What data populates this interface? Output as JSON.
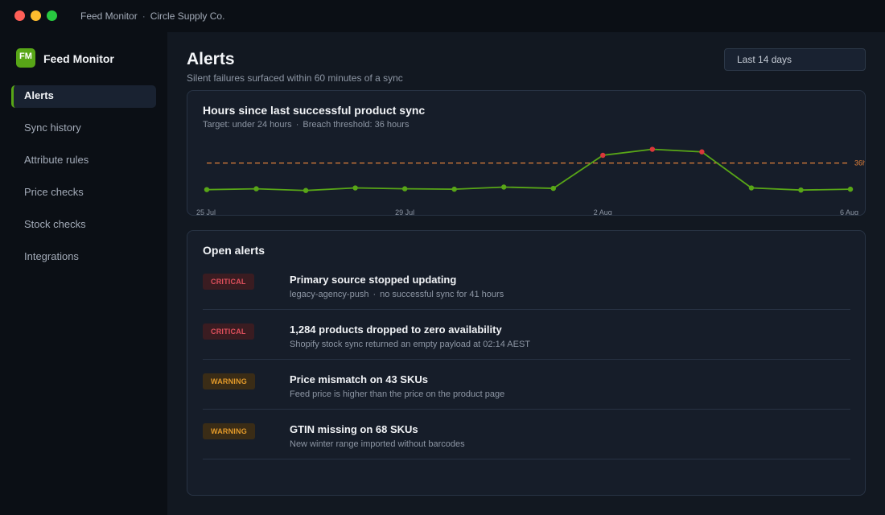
{
  "window": {
    "app_name": "Feed Monitor",
    "separator": "·",
    "company": "Circle Supply Co."
  },
  "sidebar": {
    "logo_text": "FM",
    "brand": "Feed Monitor",
    "items": [
      {
        "label": "Alerts",
        "active": true
      },
      {
        "label": "Sync history",
        "active": false
      },
      {
        "label": "Attribute rules",
        "active": false
      },
      {
        "label": "Price checks",
        "active": false
      },
      {
        "label": "Stock checks",
        "active": false
      },
      {
        "label": "Integrations",
        "active": false
      }
    ]
  },
  "header": {
    "title": "Alerts",
    "subtitle": "Silent failures surfaced within 60 minutes of a sync",
    "date_range": "Last 14 days"
  },
  "chart_card": {
    "title": "Hours since last successful product sync",
    "target": "Target: under 24 hours",
    "separator": "·",
    "threshold_text": "Breach threshold: 36 hours"
  },
  "chart_data": {
    "type": "line",
    "title": "Hours since last successful product sync",
    "x": [
      "25 Jul",
      "26 Jul",
      "27 Jul",
      "28 Jul",
      "29 Jul",
      "30 Jul",
      "31 Jul",
      "1 Aug",
      "2 Aug",
      "3 Aug",
      "4 Aug",
      "5 Aug",
      "6 Aug",
      "7 Aug"
    ],
    "x_tick_labels": [
      "25 Jul",
      "29 Jul",
      "2 Aug",
      "6 Aug"
    ],
    "series": [
      {
        "values": [
          5,
          6,
          4,
          7,
          6,
          5.5,
          8,
          6.5,
          45,
          52,
          49,
          7,
          4.5,
          5.5
        ]
      }
    ],
    "threshold": {
      "value": 36,
      "label": "36h"
    },
    "ylim": [
      0,
      60
    ],
    "grid": false,
    "colors": {
      "line": "#58a617",
      "normal_point": "#58a617",
      "breach_point": "#d9383a",
      "threshold": "#e0803a"
    }
  },
  "alerts": {
    "title": "Open alerts",
    "items": [
      {
        "severity": "CRITICAL",
        "level": "critical",
        "title": "Primary source stopped updating",
        "source": "legacy-agency-push",
        "separator": "·",
        "detail": "no successful sync for 41 hours"
      },
      {
        "severity": "CRITICAL",
        "level": "critical",
        "title": "1,284 products dropped to zero availability",
        "detail": "Shopify stock sync returned an empty payload at 02:14 AEST"
      },
      {
        "severity": "WARNING",
        "level": "warning",
        "title": "Price mismatch on 43 SKUs",
        "detail": "Feed price is higher than the price on the product page"
      },
      {
        "severity": "WARNING",
        "level": "warning",
        "title": "GTIN missing on 68 SKUs",
        "detail": "New winter range imported without barcodes"
      }
    ]
  },
  "colors": {
    "accent": "#58a617",
    "critical": "#e0505c",
    "warning": "#e39a2a"
  }
}
